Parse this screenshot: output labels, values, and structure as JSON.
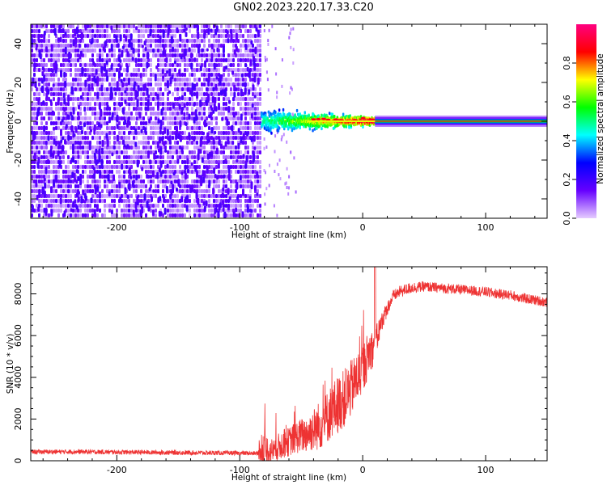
{
  "title": "GN02.2023.220.17.33.C20",
  "chart_data": [
    {
      "type": "heatmap",
      "xlabel": "Height of straight line (km)",
      "ylabel": "Frequency (Hz)",
      "xlim": [
        -270,
        150
      ],
      "ylim": [
        -50,
        50
      ],
      "x_ticks": [
        -200,
        -100,
        0,
        100
      ],
      "y_ticks": [
        -40,
        -20,
        0,
        20,
        40
      ],
      "colorbar": {
        "label": "Normalized spectral amplitude",
        "range": [
          0.0,
          1.0
        ],
        "ticks": [
          0.0,
          0.2,
          0.4,
          0.6,
          0.8
        ],
        "colors": [
          "#e6ccff",
          "#6600ff",
          "#0000ff",
          "#00ffff",
          "#00ff00",
          "#ffff00",
          "#ff0000",
          "#ff0080"
        ]
      },
      "regions": [
        {
          "x": [
            -270,
            -83
          ],
          "freq": [
            -50,
            50
          ],
          "amplitude": [
            0.05,
            0.3
          ],
          "pattern": "broadband noise"
        },
        {
          "x": [
            -83,
            10
          ],
          "freq": [
            -8,
            8
          ],
          "amplitude": [
            0.2,
            0.9
          ],
          "pattern": "band narrowing to carrier"
        },
        {
          "x": [
            10,
            150
          ],
          "freq": [
            -1,
            1
          ],
          "amplitude": [
            0.4,
            1.0
          ],
          "pattern": "narrow carrier line at 0 Hz"
        }
      ]
    },
    {
      "type": "line",
      "xlabel": "Height of straight line (km)",
      "ylabel": "SNR (10 * v/v)",
      "xlim": [
        -270,
        150
      ],
      "ylim": [
        0,
        9300
      ],
      "x_ticks": [
        -200,
        -100,
        0,
        100
      ],
      "y_ticks": [
        0,
        2000,
        4000,
        6000,
        8000
      ],
      "series": [
        {
          "color": "#ee3333",
          "x": [
            -270,
            -250,
            -230,
            -210,
            -190,
            -170,
            -150,
            -130,
            -110,
            -95,
            -85,
            -84,
            -80,
            -75,
            -70,
            -65,
            -60,
            -55,
            -50,
            -45,
            -40,
            -35,
            -30,
            -25,
            -20,
            -15,
            -10,
            -5,
            0,
            5,
            10,
            15,
            20,
            25,
            30,
            35,
            40,
            50,
            60,
            70,
            80,
            90,
            100,
            110,
            120,
            130,
            140,
            150
          ],
          "y": [
            420,
            430,
            430,
            420,
            410,
            400,
            390,
            380,
            370,
            360,
            350,
            600,
            500,
            450,
            600,
            800,
            900,
            1100,
            1200,
            1300,
            1500,
            1700,
            2000,
            2400,
            2700,
            3000,
            3400,
            3900,
            4400,
            5200,
            5500,
            6600,
            7300,
            7900,
            8100,
            8200,
            8300,
            8350,
            8300,
            8250,
            8200,
            8150,
            8100,
            8000,
            7950,
            7800,
            7700,
            7600
          ],
          "noise": [
            160,
            160,
            160,
            160,
            160,
            160,
            160,
            160,
            150,
            150,
            150,
            1600,
            1300,
            900,
            900,
            1000,
            1000,
            1100,
            1200,
            1300,
            1500,
            1700,
            1800,
            1900,
            2000,
            2000,
            2000,
            1800,
            1800,
            1500,
            1200,
            700,
            500,
            400,
            400,
            400,
            400,
            350,
            350,
            350,
            350,
            350,
            350,
            350,
            350,
            350,
            350,
            350
          ]
        }
      ]
    }
  ]
}
